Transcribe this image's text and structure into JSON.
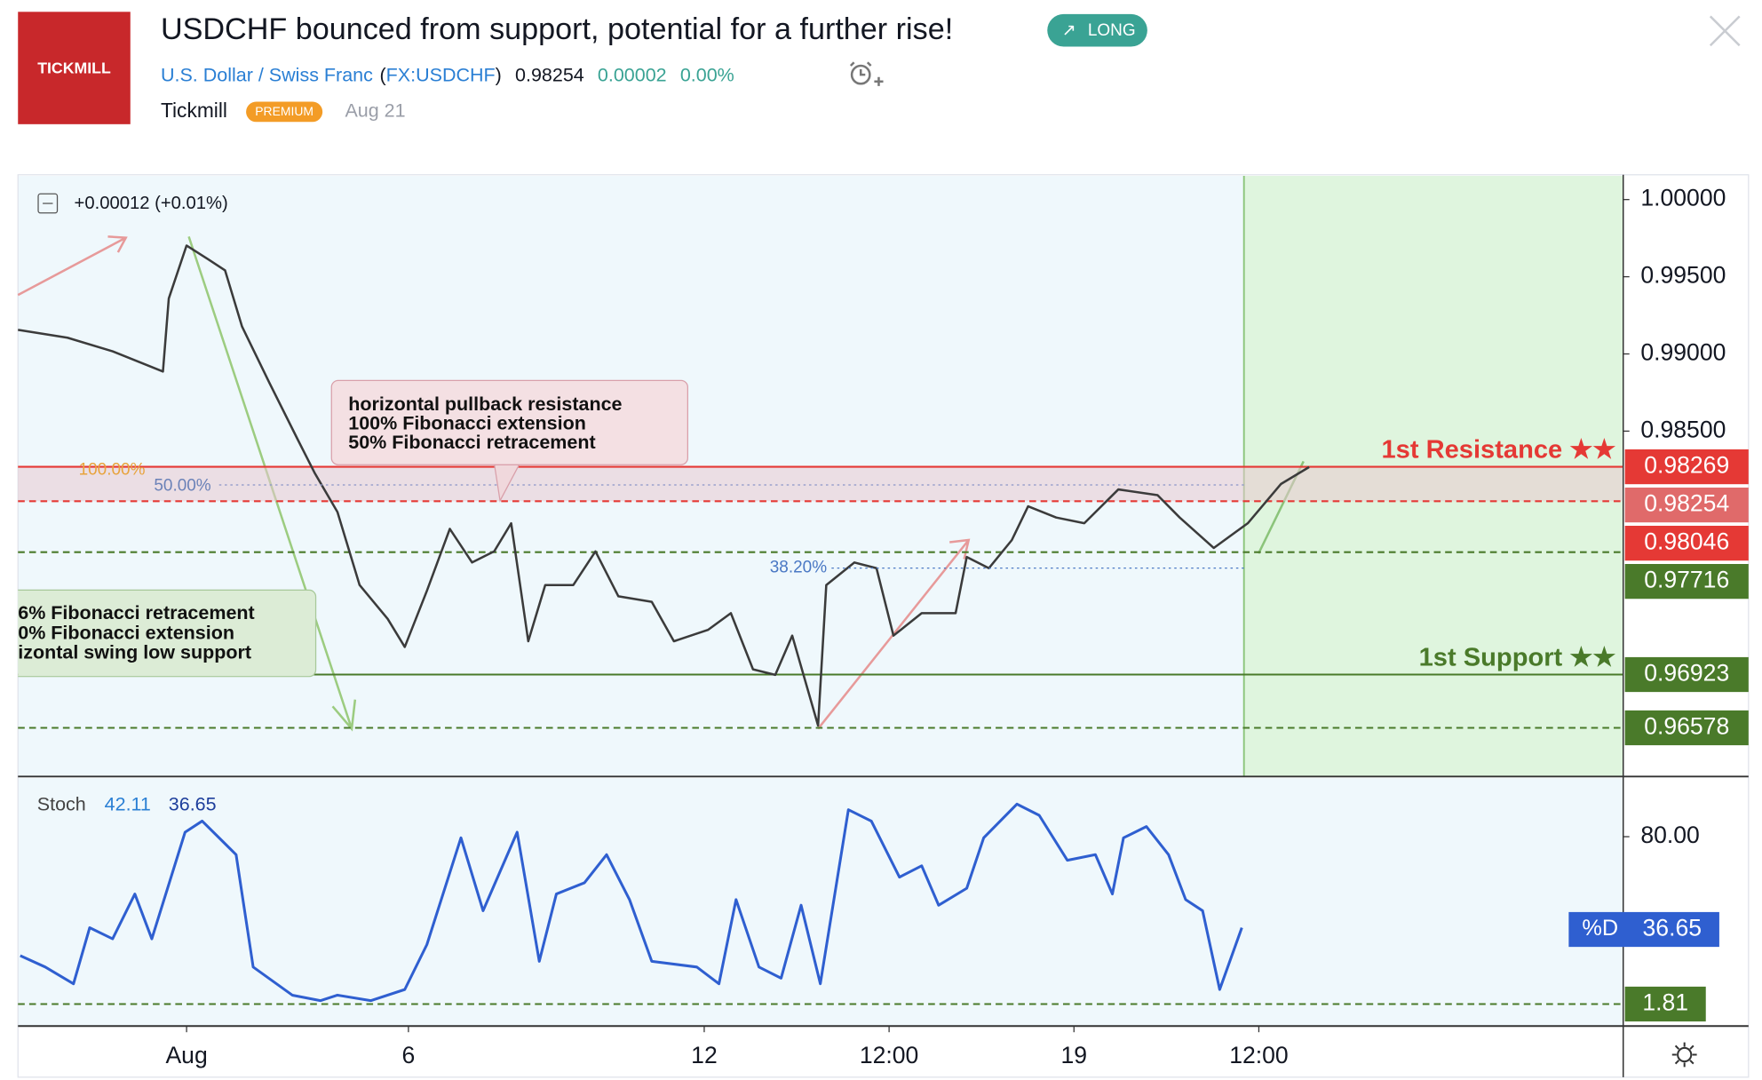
{
  "header": {
    "logo": "TICKMILL",
    "title": "USDCHF bounced from support, potential for a further rise!",
    "badge": "LONG",
    "symbol_name": "U.S. Dollar / Swiss Franc",
    "symbol_open": "(",
    "symbol_code": "FX:USDCHF",
    "symbol_close": ")",
    "price": "0.98254",
    "change": "0.00002",
    "change_pct": "0.00%",
    "author": "Tickmill",
    "author_badge": "PREMIUM",
    "date": "Aug 21"
  },
  "chart_data": [
    {
      "type": "line",
      "legend_text": "+0.00012 (+0.01%)",
      "xlim": [
        -2.28,
        19.42
      ],
      "xticks": [
        {
          "value": 0,
          "label": "Aug"
        },
        {
          "value": 3,
          "label": "6"
        },
        {
          "value": 7,
          "label": "12"
        },
        {
          "value": 9.5,
          "label": "12:00"
        },
        {
          "value": 12,
          "label": "19"
        },
        {
          "value": 14.5,
          "label": "12:00"
        }
      ],
      "ylim": [
        0.96266,
        1.00146
      ],
      "yticks": [
        {
          "value": 1,
          "label": "1.00000"
        },
        {
          "value": 0.995,
          "label": "0.99500"
        },
        {
          "value": 0.99,
          "label": "0.99000"
        },
        {
          "value": 0.985,
          "label": "0.98500"
        }
      ],
      "series": [
        {
          "color": "#3b3b3b",
          "x": [
            -2.28,
            -1.61,
            -1.0,
            -0.32,
            -0.24,
            0,
            0.29,
            0.52,
            0.75,
            1.12,
            1.5,
            1.73,
            2.04,
            2.34,
            2.72,
            2.95,
            3.25,
            3.56,
            3.86,
            4.16,
            4.39,
            4.62,
            4.85,
            5.23,
            5.53,
            5.84,
            6.29,
            6.59,
            7.05,
            7.36,
            7.66,
            7.96,
            8.19,
            8.54,
            8.65,
            9.03,
            9.33,
            9.56,
            9.94,
            10.4,
            10.55,
            10.85,
            11.16,
            11.38,
            11.76,
            12.14,
            12.6,
            13.13,
            13.43,
            13.89,
            14.35,
            14.8,
            15.18
          ],
          "values": [
            0.99156,
            0.99105,
            0.99017,
            0.98886,
            0.99359,
            0.99702,
            0.99614,
            0.99541,
            0.99177,
            0.98813,
            0.98449,
            0.98231,
            0.97976,
            0.97503,
            0.97284,
            0.97102,
            0.97466,
            0.97867,
            0.97649,
            0.97721,
            0.97903,
            0.97139,
            0.97503,
            0.97503,
            0.97721,
            0.9743,
            0.97394,
            0.97139,
            0.97212,
            0.97321,
            0.96957,
            0.96921,
            0.97175,
            0.96593,
            0.97503,
            0.97649,
            0.97612,
            0.97175,
            0.97321,
            0.97321,
            0.97685,
            0.97612,
            0.97794,
            0.98013,
            0.9794,
            0.97903,
            0.98122,
            0.98085,
            0.9794,
            0.97743,
            0.97903,
            0.98158,
            0.98267
          ]
        }
      ],
      "levels": [
        {
          "value": 0.98269,
          "color": "#e53935",
          "line": "solid",
          "name": "1st Resistance ★★"
        },
        {
          "value": 0.98254,
          "color": "#e06a6a",
          "line": "none"
        },
        {
          "value": 0.98046,
          "color": "#e53935",
          "line": "dashed"
        },
        {
          "value": 0.97716,
          "color": "#4a7a2a",
          "line": "dashed"
        },
        {
          "value": 0.96923,
          "color": "#4a7a2a",
          "line": "solid",
          "name": "1st Support ★★"
        },
        {
          "value": 0.96578,
          "color": "#4a7a2a",
          "line": "dashed"
        }
      ],
      "fib_labels": [
        "100.00%",
        "50.00%",
        "38.20%"
      ],
      "annotations": [
        {
          "lines": [
            "horizontal pullback resistance",
            "100% Fibonacci extension",
            "50% Fibonacci retracement"
          ]
        },
        {
          "lines": [
            "6% Fibonacci retracement",
            "0% Fibonacci extension",
            "izontal swing low support"
          ]
        }
      ]
    },
    {
      "type": "line",
      "title": "Stoch",
      "legend_values": [
        42.11,
        36.65
      ],
      "xlim": [
        -2.28,
        19.42
      ],
      "ylim": [
        -8.2,
        107.3
      ],
      "yticks": [
        {
          "value": 80,
          "label": "80.00"
        }
      ],
      "series": [
        {
          "name": "%D",
          "color": "#2f5fd0",
          "x": [
            -2.25,
            -1.91,
            -1.53,
            -1.31,
            -1.0,
            -0.7,
            -0.47,
            -0.02,
            0.21,
            0.67,
            0.9,
            1.43,
            1.81,
            2.04,
            2.49,
            2.95,
            3.25,
            3.71,
            4.01,
            4.47,
            4.77,
            5.0,
            5.38,
            5.68,
            5.99,
            6.29,
            6.9,
            7.2,
            7.43,
            7.74,
            8.04,
            8.31,
            8.57,
            8.95,
            9.26,
            9.64,
            9.94,
            10.17,
            10.55,
            10.78,
            11.23,
            11.53,
            11.91,
            12.29,
            12.52,
            12.67,
            12.98,
            13.28,
            13.51,
            13.74,
            13.97,
            14.27
          ],
          "values": [
            24.4,
            19.1,
            11.3,
            37.5,
            32.3,
            53.2,
            32.3,
            82.1,
            87.3,
            71.6,
            19.1,
            6.0,
            3.4,
            6.0,
            3.4,
            8.6,
            29.6,
            79.5,
            45.4,
            82.1,
            21.8,
            53.2,
            58.5,
            71.6,
            50.6,
            21.8,
            19.1,
            11.3,
            50.6,
            19.1,
            13.9,
            48.0,
            11.3,
            92.6,
            87.3,
            61.1,
            66.4,
            48.0,
            55.9,
            79.5,
            95.2,
            90.0,
            69.0,
            71.6,
            53.2,
            79.5,
            84.7,
            71.6,
            50.6,
            45.4,
            8.6,
            37.5
          ]
        }
      ],
      "current": 36.65,
      "levels": [
        {
          "value": 1.81,
          "color": "#4a7a2a",
          "line": "dashed"
        }
      ]
    }
  ]
}
